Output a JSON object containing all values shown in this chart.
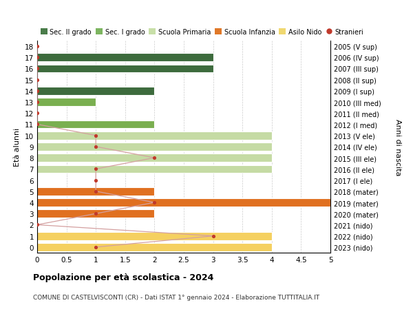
{
  "ages": [
    18,
    17,
    16,
    15,
    14,
    13,
    12,
    11,
    10,
    9,
    8,
    7,
    6,
    5,
    4,
    3,
    2,
    1,
    0
  ],
  "right_labels": [
    "2005 (V sup)",
    "2006 (IV sup)",
    "2007 (III sup)",
    "2008 (II sup)",
    "2009 (I sup)",
    "2010 (III med)",
    "2011 (II med)",
    "2012 (I med)",
    "2013 (V ele)",
    "2014 (IV ele)",
    "2015 (III ele)",
    "2016 (II ele)",
    "2017 (I ele)",
    "2018 (mater)",
    "2019 (mater)",
    "2020 (mater)",
    "2021 (nido)",
    "2022 (nido)",
    "2023 (nido)"
  ],
  "bar_values": [
    0,
    3,
    3,
    0,
    2,
    1,
    0,
    2,
    4,
    4,
    4,
    4,
    0,
    2,
    5,
    2,
    0,
    4,
    4
  ],
  "bar_colors": [
    "#3d6b3d",
    "#3d6b3d",
    "#3d6b3d",
    "#3d6b3d",
    "#3d6b3d",
    "#7aaf50",
    "#7aaf50",
    "#7aaf50",
    "#c5dba4",
    "#c5dba4",
    "#c5dba4",
    "#c5dba4",
    "#c5dba4",
    "#e07020",
    "#e07020",
    "#e07020",
    "#f5d060",
    "#f5d060",
    "#f5d060"
  ],
  "stranieri_values": [
    0,
    0,
    0,
    0,
    0,
    0,
    0,
    0,
    1,
    1,
    2,
    1,
    1,
    1,
    2,
    1,
    0,
    3,
    1
  ],
  "xlim": [
    0,
    5.0
  ],
  "xticks": [
    0,
    0.5,
    1.0,
    1.5,
    2.0,
    2.5,
    3.0,
    3.5,
    4.0,
    4.5,
    5.0
  ],
  "xlabel_left": "Età alunni",
  "xlabel_right": "Anni di nascita",
  "title": "Popolazione per età scolastica - 2024",
  "subtitle": "COMUNE DI CASTELVISCONTI (CR) - Dati ISTAT 1° gennaio 2024 - Elaborazione TUTTITALIA.IT",
  "legend_items": [
    {
      "label": "Sec. II grado",
      "color": "#4a7c4a"
    },
    {
      "label": "Sec. I grado",
      "color": "#7db560"
    },
    {
      "label": "Scuola Primaria",
      "color": "#c8dfa8"
    },
    {
      "label": "Scuola Infanzia",
      "color": "#e07828"
    },
    {
      "label": "Asilo Nido",
      "color": "#f0d870"
    },
    {
      "label": "Stranieri",
      "color": "#c0392b"
    }
  ],
  "bg_color": "#ffffff",
  "grid_color": "#cccccc",
  "bar_height": 0.72,
  "stranieri_color": "#c0392b",
  "stranieri_line_color": "#d4a0a0"
}
